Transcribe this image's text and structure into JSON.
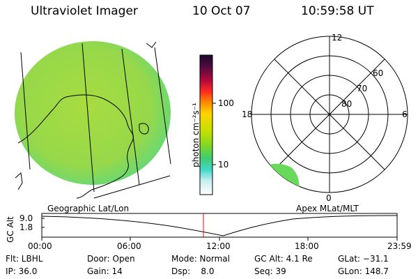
{
  "header": {
    "title": "Ultraviolet Imager",
    "date": "10 Oct 07",
    "time": "10:59:58 UT"
  },
  "colorbar": {
    "label": "photon cm⁻²s⁻¹",
    "ticks": [
      "100",
      "10"
    ],
    "colors": [
      "#1a0a2a",
      "#5a0a3a",
      "#aa0a3a",
      "#ff2020",
      "#ff8000",
      "#ffd000",
      "#b0e000",
      "#40d060",
      "#40e0c0",
      "#c0f0f0",
      "#ffffff"
    ]
  },
  "polar": {
    "mlt_labels": [
      "12",
      "18",
      "6",
      "0"
    ],
    "lat_labels": [
      "60",
      "70",
      "80"
    ]
  },
  "projection": {
    "left": "Geographic Lat/Lon",
    "right": "Apex MLat/MLT"
  },
  "altitude_plot": {
    "axis_label": "GC Alt",
    "y_ticks": [
      "9.0",
      "1.8"
    ],
    "x_ticks": [
      "00:00",
      "06:00",
      "12:00",
      "18:00",
      "23:59"
    ]
  },
  "info": {
    "filter": "Flt: LBHL",
    "ip": "IP: 36.0",
    "door": "Door: Open",
    "gain": "Gain: 14",
    "mode": "Mode: Normal",
    "dsp": "Dsp:    8.0",
    "gc_alt": "GC Alt: 4.1 Re",
    "seq": "Seq: 39",
    "glat": "GLat: −31.1",
    "glon": "GLon: 148.7"
  },
  "colors": {
    "earth_fill": "#9ad848",
    "aurora_fill": "#6ad85a",
    "time_marker": "#ff0000"
  }
}
